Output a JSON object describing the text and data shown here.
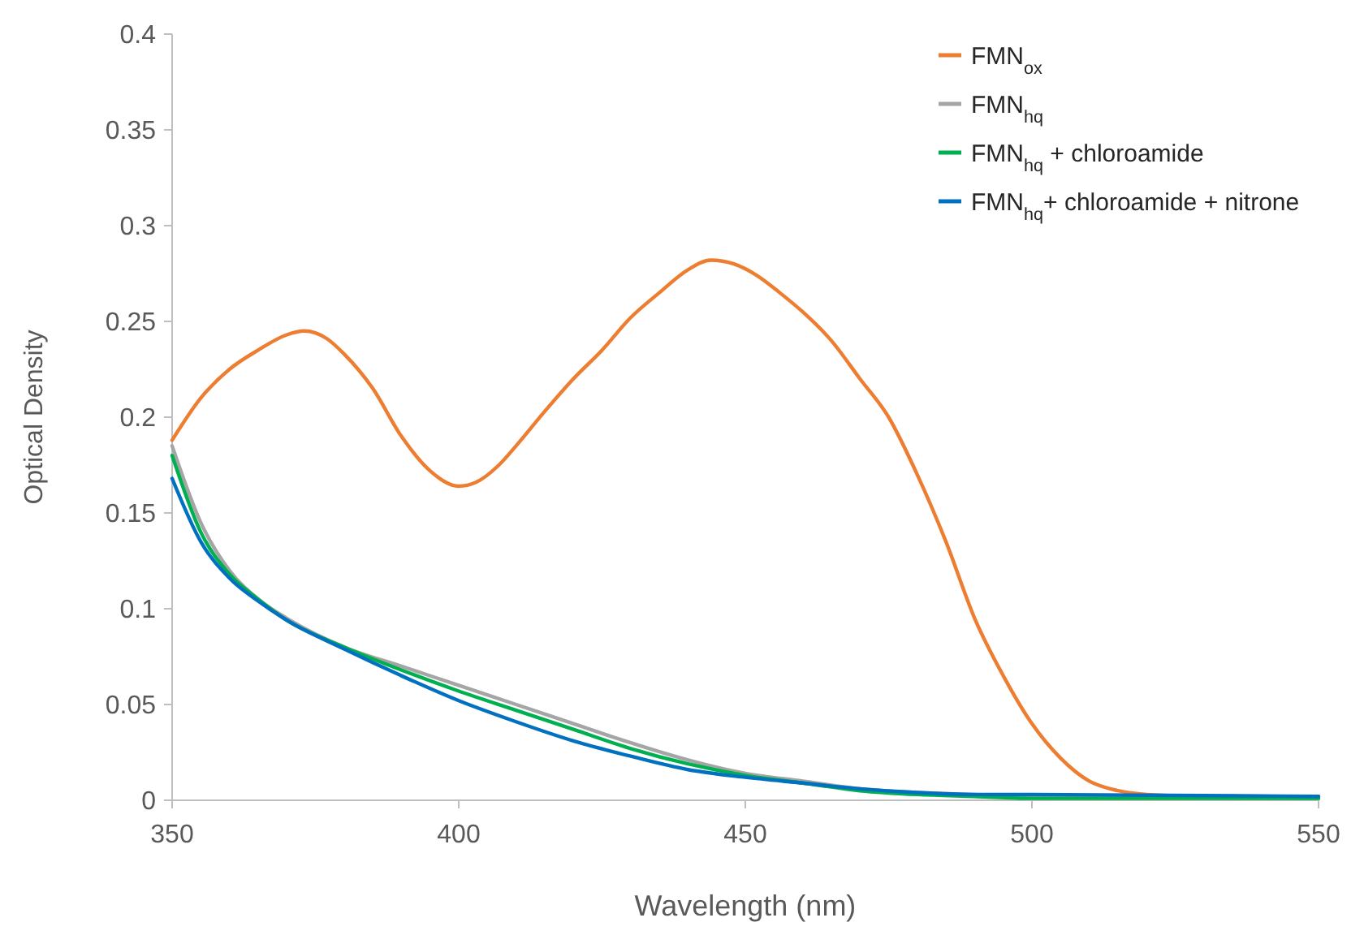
{
  "chart_data": {
    "type": "line",
    "xlabel": "Wavelength (nm)",
    "ylabel": "Optical Density",
    "xlim": [
      350,
      550
    ],
    "ylim": [
      0,
      0.4
    ],
    "xticks": [
      350,
      400,
      450,
      500,
      550
    ],
    "yticks": [
      0,
      0.05,
      0.1,
      0.15,
      0.2,
      0.25,
      0.3,
      0.35,
      0.4
    ],
    "grid": false,
    "legend": "top right",
    "marker": "none",
    "line_style": "solid",
    "series": [
      {
        "name": "FMN$_{ox}$",
        "color": "#ed7d31",
        "x": [
          350,
          355,
          360,
          365,
          370,
          373,
          377,
          380,
          385,
          390,
          395,
          400,
          403,
          407,
          410,
          415,
          420,
          425,
          430,
          435,
          440,
          444,
          448,
          452,
          456,
          460,
          465,
          470,
          475,
          480,
          485,
          490,
          495,
          500,
          505,
          510,
          515,
          520,
          530,
          550
        ],
        "values": [
          0.188,
          0.21,
          0.225,
          0.235,
          0.243,
          0.245,
          0.241,
          0.233,
          0.215,
          0.19,
          0.172,
          0.164,
          0.166,
          0.175,
          0.185,
          0.203,
          0.22,
          0.235,
          0.252,
          0.265,
          0.277,
          0.282,
          0.28,
          0.274,
          0.265,
          0.255,
          0.24,
          0.22,
          0.2,
          0.17,
          0.135,
          0.095,
          0.065,
          0.04,
          0.022,
          0.01,
          0.005,
          0.003,
          0.002,
          0.002
        ]
      },
      {
        "name": "FMN$_{hq}$",
        "color": "#a5a5a5",
        "x": [
          350,
          355,
          360,
          365,
          370,
          380,
          390,
          400,
          410,
          420,
          430,
          440,
          450,
          460,
          470,
          480,
          490,
          500,
          550
        ],
        "values": [
          0.185,
          0.145,
          0.12,
          0.105,
          0.095,
          0.08,
          0.07,
          0.06,
          0.05,
          0.04,
          0.03,
          0.021,
          0.014,
          0.01,
          0.006,
          0.004,
          0.003,
          0.002,
          0.001
        ]
      },
      {
        "name": "FMN$_{hq}$ + chloroamide",
        "color": "#00b050",
        "x": [
          350,
          355,
          360,
          365,
          370,
          380,
          390,
          400,
          410,
          420,
          430,
          440,
          450,
          460,
          470,
          480,
          490,
          500,
          550
        ],
        "values": [
          0.18,
          0.14,
          0.118,
          0.105,
          0.094,
          0.08,
          0.068,
          0.057,
          0.047,
          0.037,
          0.027,
          0.019,
          0.013,
          0.009,
          0.005,
          0.003,
          0.002,
          0.001,
          0.001
        ]
      },
      {
        "name": "FMN$_{hq}$+ chloroamide + nitrone",
        "color": "#0070c0",
        "x": [
          350,
          355,
          360,
          365,
          370,
          380,
          390,
          400,
          410,
          420,
          430,
          440,
          450,
          460,
          470,
          480,
          490,
          500,
          550
        ],
        "values": [
          0.168,
          0.135,
          0.116,
          0.104,
          0.094,
          0.079,
          0.065,
          0.052,
          0.041,
          0.031,
          0.023,
          0.016,
          0.012,
          0.009,
          0.006,
          0.004,
          0.003,
          0.003,
          0.002
        ]
      }
    ]
  }
}
